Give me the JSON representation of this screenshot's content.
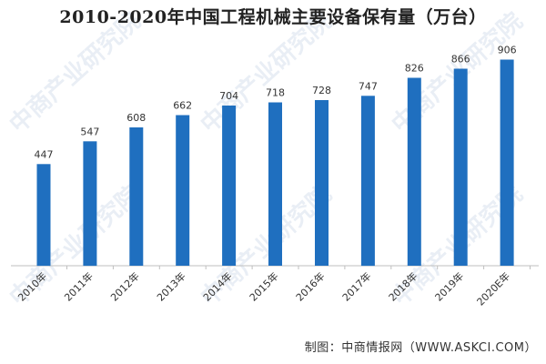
{
  "chart_data": {
    "type": "bar",
    "title": "2010-2020年中国工程机械主要设备保有量（万台）",
    "categories": [
      "2010年",
      "2011年",
      "2012年",
      "2013年",
      "2014年",
      "2015年",
      "2016年",
      "2017年",
      "2018年",
      "2019年",
      "2020E年"
    ],
    "values": [
      447,
      547,
      608,
      662,
      704,
      718,
      728,
      747,
      826,
      866,
      906
    ],
    "data_labels": [
      "447",
      "547",
      "608",
      "662",
      "704",
      "718",
      "728",
      "747",
      "826",
      "866",
      "906"
    ],
    "ylim": [
      0,
      1000
    ],
    "xlabel": "",
    "ylabel": "",
    "grid": false,
    "bar_color": "#1f6fbf"
  },
  "watermark_text": "中商产业研究院",
  "source_text": "制图：中商情报网（WWW.ASKCI.COM）"
}
